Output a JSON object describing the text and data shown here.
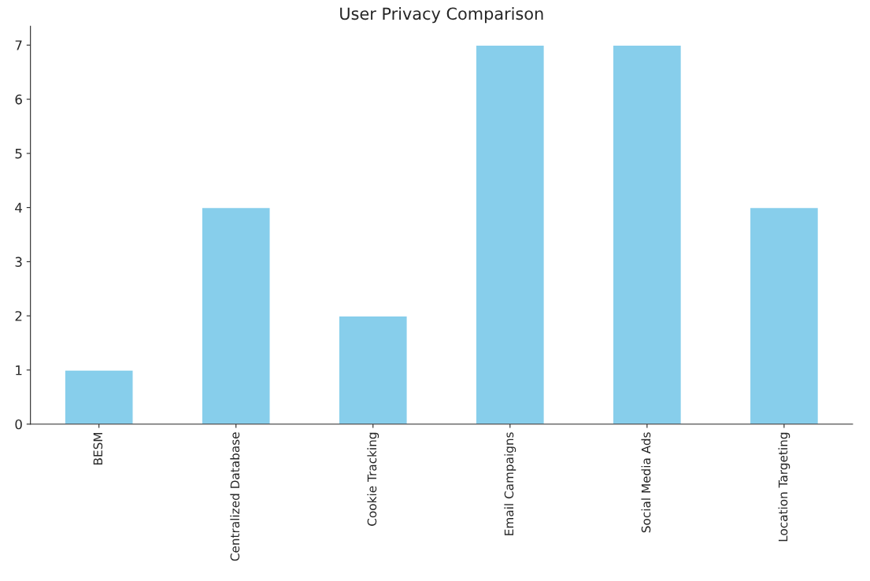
{
  "chart_data": {
    "type": "bar",
    "title": "User Privacy Comparison",
    "categories": [
      "BESM",
      "Centralized Database",
      "Cookie Tracking",
      "Email Campaigns",
      "Social Media Ads",
      "Location Targeting"
    ],
    "values": [
      1,
      4,
      2,
      7,
      7,
      4
    ],
    "color": "#87ceeb",
    "ylim": [
      0,
      7.35
    ],
    "yticks": [
      0,
      1,
      2,
      3,
      4,
      5,
      6,
      7
    ],
    "grid": false,
    "legend": false
  }
}
